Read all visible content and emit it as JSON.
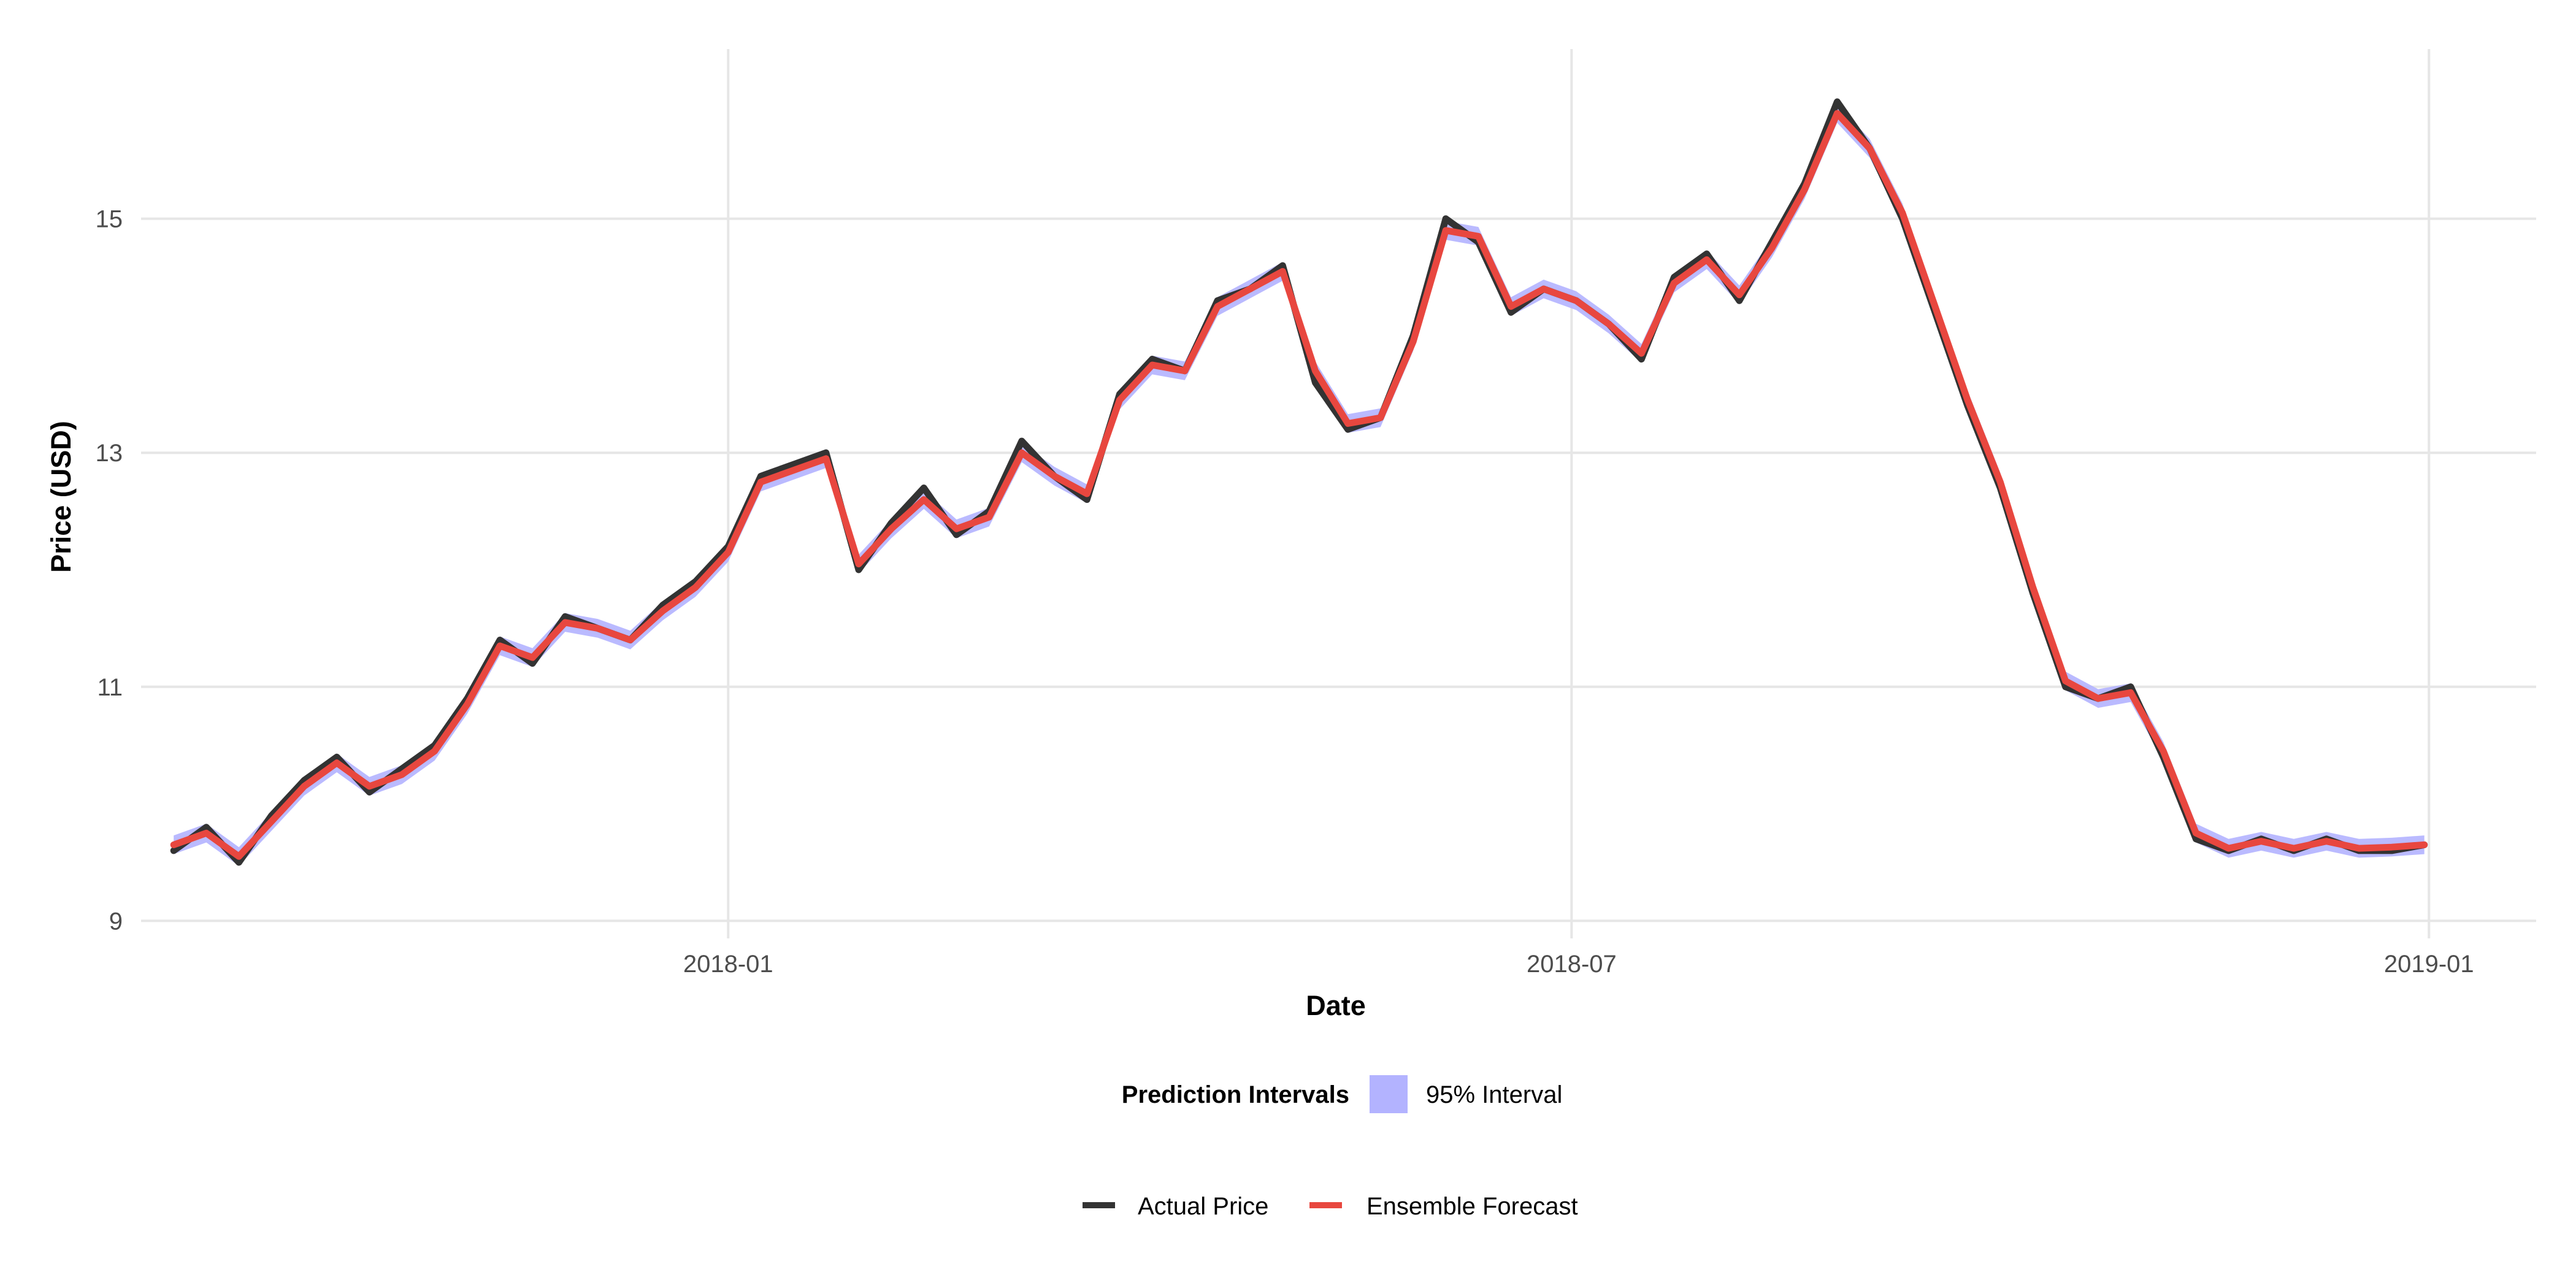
{
  "chart_data": {
    "type": "line",
    "title": "",
    "xlabel": "Date",
    "ylabel": "Price (USD)",
    "x_ticks": [
      "2018-01",
      "2018-07",
      "2019-01"
    ],
    "x_tick_dates": [
      "2018-01-01",
      "2018-07-01",
      "2019-01-01"
    ],
    "y_ticks": [
      9,
      11,
      13,
      15
    ],
    "ylim": [
      8.85,
      16.45
    ],
    "xlim": [
      "2017-08-28",
      "2019-01-24"
    ],
    "grid": true,
    "legend_position": "bottom",
    "legends": {
      "interval": {
        "title": "Prediction Intervals",
        "label": "95% Interval",
        "color": "#b3b3ff"
      },
      "lines": [
        {
          "label": "Actual Price",
          "color": "#333333"
        },
        {
          "label": "Ensemble Forecast",
          "color": "#e8473f"
        }
      ]
    },
    "x": [
      "2017-09-04",
      "2017-09-11",
      "2017-09-18",
      "2017-09-25",
      "2017-10-02",
      "2017-10-09",
      "2017-10-16",
      "2017-10-23",
      "2017-10-30",
      "2017-11-06",
      "2017-11-13",
      "2017-11-20",
      "2017-11-27",
      "2017-12-04",
      "2017-12-11",
      "2017-12-18",
      "2017-12-25",
      "2018-01-01",
      "2018-01-08",
      "2018-01-15",
      "2018-01-22",
      "2018-01-29",
      "2018-02-05",
      "2018-02-12",
      "2018-02-19",
      "2018-02-26",
      "2018-03-05",
      "2018-03-12",
      "2018-03-19",
      "2018-03-26",
      "2018-04-02",
      "2018-04-09",
      "2018-04-16",
      "2018-04-23",
      "2018-04-30",
      "2018-05-07",
      "2018-05-14",
      "2018-05-21",
      "2018-05-28",
      "2018-06-04",
      "2018-06-11",
      "2018-06-18",
      "2018-06-25",
      "2018-07-02",
      "2018-07-09",
      "2018-07-16",
      "2018-07-23",
      "2018-07-30",
      "2018-08-06",
      "2018-08-13",
      "2018-08-20",
      "2018-08-27",
      "2018-09-03",
      "2018-09-10",
      "2018-09-17",
      "2018-09-24",
      "2018-10-01",
      "2018-10-08",
      "2018-10-15",
      "2018-10-22",
      "2018-10-29",
      "2018-11-05",
      "2018-11-12",
      "2018-11-19",
      "2018-11-26",
      "2018-12-03",
      "2018-12-10",
      "2018-12-17",
      "2018-12-24",
      "2018-12-31"
    ],
    "series": [
      {
        "name": "Actual Price",
        "values": [
          9.6,
          9.8,
          9.5,
          9.9,
          10.2,
          10.4,
          10.1,
          10.3,
          10.5,
          10.9,
          11.4,
          11.2,
          11.6,
          11.5,
          11.4,
          11.7,
          11.9,
          12.2,
          12.8,
          12.9,
          13.0,
          12.0,
          12.4,
          12.7,
          12.3,
          12.5,
          13.1,
          12.8,
          12.6,
          13.5,
          13.8,
          13.7,
          14.3,
          14.4,
          14.6,
          13.6,
          13.2,
          13.3,
          14.0,
          15.0,
          14.8,
          14.2,
          14.4,
          14.3,
          14.1,
          13.8,
          14.5,
          14.7,
          14.3,
          14.8,
          15.3,
          16.0,
          15.6,
          15.0,
          14.2,
          13.4,
          12.7,
          11.8,
          11.0,
          10.9,
          11.0,
          10.4,
          9.7,
          9.6,
          9.7,
          9.6,
          9.7,
          9.6,
          9.6,
          9.65
        ]
      },
      {
        "name": "Ensemble Forecast",
        "values": [
          9.65,
          9.75,
          9.55,
          9.85,
          10.15,
          10.35,
          10.15,
          10.25,
          10.45,
          10.85,
          11.35,
          11.25,
          11.55,
          11.5,
          11.4,
          11.65,
          11.85,
          12.15,
          12.75,
          12.85,
          12.95,
          12.05,
          12.35,
          12.6,
          12.35,
          12.45,
          13.0,
          12.8,
          12.65,
          13.45,
          13.75,
          13.7,
          14.25,
          14.4,
          14.55,
          13.7,
          13.25,
          13.3,
          13.95,
          14.9,
          14.85,
          14.25,
          14.4,
          14.3,
          14.1,
          13.85,
          14.45,
          14.65,
          14.35,
          14.75,
          15.25,
          15.9,
          15.6,
          15.05,
          14.25,
          13.45,
          12.75,
          11.85,
          11.05,
          10.9,
          10.95,
          10.45,
          9.75,
          9.62,
          9.68,
          9.62,
          9.68,
          9.62,
          9.63,
          9.65
        ]
      }
    ],
    "interval": {
      "lower_offset": -0.08,
      "upper_offset": 0.08
    }
  }
}
